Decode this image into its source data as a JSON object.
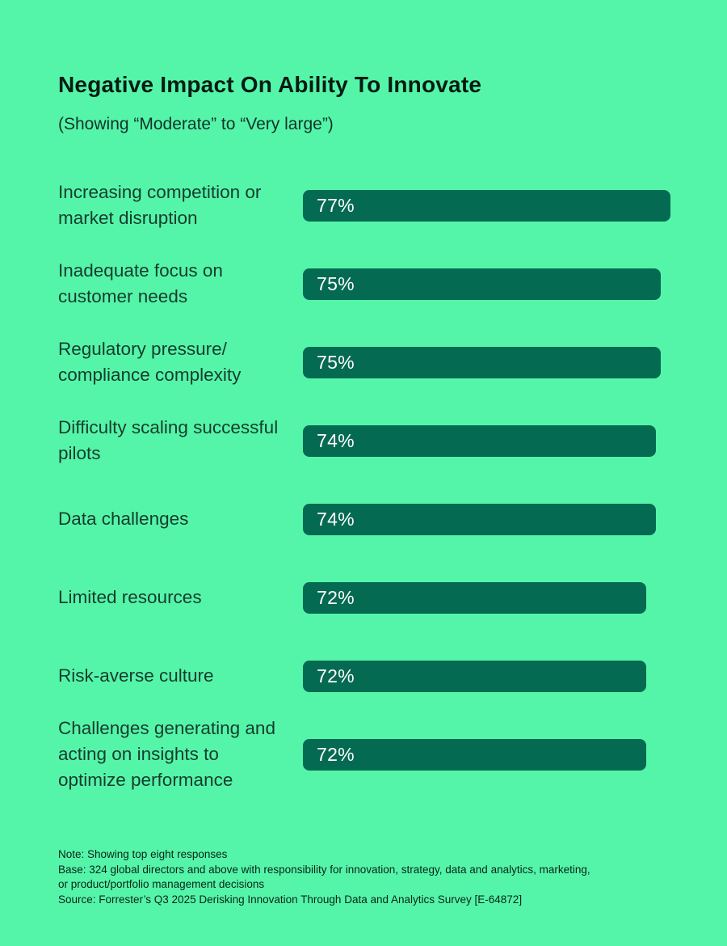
{
  "chart_data": {
    "type": "bar",
    "orientation": "horizontal",
    "title": "Negative Impact On Ability To Innovate",
    "subtitle": "(Showing “Moderate” to “Very large”)",
    "categories": [
      "Increasing competition or market disruption",
      "Inadequate focus on customer needs",
      "Regulatory pressure/ compliance complexity",
      "Difficulty scaling successful pilots",
      "Data challenges",
      "Limited resources",
      "Risk-averse culture",
      "Challenges generating and acting on insights to optimize performance"
    ],
    "values": [
      77,
      75,
      75,
      74,
      74,
      72,
      72,
      72
    ],
    "value_suffix": "%",
    "xlim": [
      0,
      100
    ],
    "value_labels_inside_bar": true,
    "grid": false,
    "legend": "none",
    "background_color": "#55f5a9",
    "bar_color": "#056a52",
    "value_label_color": "#ffffff",
    "category_label_color": "#153c2d"
  },
  "footnotes": {
    "lines": [
      "Note: Showing top eight responses",
      "Base: 324 global directors and above with responsibility for innovation, strategy, data and analytics, marketing,",
      "or product/portfolio management decisions",
      "Source: Forrester’s Q3 2025 Derisking Innovation Through Data and Analytics Survey [E-64872]"
    ]
  }
}
